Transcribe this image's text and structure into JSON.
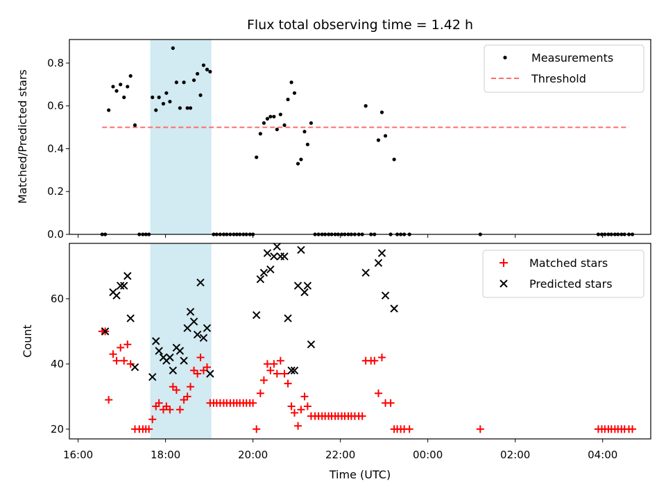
{
  "chart_data": {
    "type": "scatter",
    "title": "Flux total observing time = 1.42 h",
    "xlabel": "Time (UTC)",
    "x_unit": "hours since 16:00 UTC",
    "xlim": [
      -0.2,
      13.1
    ],
    "x_ticks": [
      {
        "x": 0,
        "label": "16:00"
      },
      {
        "x": 2,
        "label": "18:00"
      },
      {
        "x": 4,
        "label": "20:00"
      },
      {
        "x": 6,
        "label": "22:00"
      },
      {
        "x": 8,
        "label": "00:00"
      },
      {
        "x": 10,
        "label": "02:00"
      },
      {
        "x": 12,
        "label": "04:00"
      }
    ],
    "shaded_span": {
      "x0": 1.65,
      "x1": 3.05,
      "color": "#add8e6"
    },
    "top": {
      "ylabel": "Matched/Predicted stars",
      "ylim": [
        0,
        0.91
      ],
      "y_ticks": [
        "0.0",
        "0.2",
        "0.4",
        "0.6",
        "0.8"
      ],
      "legend": {
        "position": "top-right",
        "items": [
          "Measurements",
          "Threshold"
        ]
      },
      "threshold": {
        "name": "Threshold",
        "value": 0.5,
        "x_range": [
          0.55,
          12.6
        ],
        "color": "#ff6b6b"
      },
      "measurements": {
        "name": "Measurements",
        "color": "#000000",
        "points": [
          [
            0.55,
            0
          ],
          [
            0.62,
            0
          ],
          [
            0.7,
            0.58
          ],
          [
            0.8,
            0.69
          ],
          [
            0.88,
            0.67
          ],
          [
            0.97,
            0.7
          ],
          [
            1.05,
            0.64
          ],
          [
            1.13,
            0.69
          ],
          [
            1.2,
            0.74
          ],
          [
            1.3,
            0.51
          ],
          [
            1.4,
            0
          ],
          [
            1.48,
            0
          ],
          [
            1.55,
            0
          ],
          [
            1.62,
            0
          ],
          [
            1.7,
            0.64
          ],
          [
            1.78,
            0.58
          ],
          [
            1.85,
            0.64
          ],
          [
            1.95,
            0.61
          ],
          [
            2.02,
            0.66
          ],
          [
            2.1,
            0.62
          ],
          [
            2.17,
            0.87
          ],
          [
            2.25,
            0.71
          ],
          [
            2.33,
            0.59
          ],
          [
            2.42,
            0.71
          ],
          [
            2.5,
            0.59
          ],
          [
            2.57,
            0.59
          ],
          [
            2.65,
            0.72
          ],
          [
            2.73,
            0.75
          ],
          [
            2.8,
            0.65
          ],
          [
            2.87,
            0.79
          ],
          [
            2.95,
            0.77
          ],
          [
            3.02,
            0.76
          ],
          [
            3.1,
            0
          ],
          [
            3.17,
            0
          ],
          [
            3.25,
            0
          ],
          [
            3.33,
            0
          ],
          [
            3.4,
            0
          ],
          [
            3.48,
            0
          ],
          [
            3.56,
            0
          ],
          [
            3.63,
            0
          ],
          [
            3.7,
            0
          ],
          [
            3.78,
            0
          ],
          [
            3.85,
            0
          ],
          [
            3.93,
            0
          ],
          [
            4.0,
            0
          ],
          [
            4.08,
            0.36
          ],
          [
            4.17,
            0.47
          ],
          [
            4.25,
            0.52
          ],
          [
            4.33,
            0.54
          ],
          [
            4.4,
            0.55
          ],
          [
            4.48,
            0.55
          ],
          [
            4.55,
            0.49
          ],
          [
            4.63,
            0.56
          ],
          [
            4.72,
            0.51
          ],
          [
            4.8,
            0.63
          ],
          [
            4.88,
            0.71
          ],
          [
            4.95,
            0.66
          ],
          [
            5.03,
            0.33
          ],
          [
            5.1,
            0.35
          ],
          [
            5.18,
            0.48
          ],
          [
            5.25,
            0.42
          ],
          [
            5.33,
            0.52
          ],
          [
            5.42,
            0
          ],
          [
            5.5,
            0
          ],
          [
            5.58,
            0
          ],
          [
            5.65,
            0
          ],
          [
            5.73,
            0
          ],
          [
            5.8,
            0
          ],
          [
            5.88,
            0
          ],
          [
            5.95,
            0
          ],
          [
            6.03,
            0
          ],
          [
            6.1,
            0
          ],
          [
            6.18,
            0
          ],
          [
            6.25,
            0
          ],
          [
            6.33,
            0
          ],
          [
            6.42,
            0
          ],
          [
            6.5,
            0
          ],
          [
            6.58,
            0.6
          ],
          [
            6.7,
            0
          ],
          [
            6.78,
            0
          ],
          [
            6.87,
            0.44
          ],
          [
            6.95,
            0.57
          ],
          [
            7.03,
            0.46
          ],
          [
            7.15,
            0
          ],
          [
            7.23,
            0.35
          ],
          [
            7.3,
            0
          ],
          [
            7.38,
            0
          ],
          [
            7.46,
            0
          ],
          [
            7.58,
            0
          ],
          [
            9.2,
            0
          ],
          [
            11.9,
            0
          ],
          [
            11.98,
            0
          ],
          [
            12.05,
            0
          ],
          [
            12.13,
            0
          ],
          [
            12.2,
            0
          ],
          [
            12.28,
            0
          ],
          [
            12.35,
            0
          ],
          [
            12.43,
            0
          ],
          [
            12.5,
            0
          ],
          [
            12.6,
            0
          ],
          [
            12.68,
            0
          ]
        ]
      }
    },
    "bottom": {
      "ylabel": "Count",
      "ylim": [
        17,
        77
      ],
      "y_ticks": [
        "20",
        "40",
        "60"
      ],
      "legend": {
        "position": "top-right",
        "items": [
          "Matched stars",
          "Predicted stars"
        ]
      },
      "matched": {
        "name": "Matched stars",
        "color": "#ff0000",
        "marker": "plus",
        "points": [
          [
            0.55,
            50
          ],
          [
            0.62,
            50
          ],
          [
            0.7,
            29
          ],
          [
            0.8,
            43
          ],
          [
            0.88,
            41
          ],
          [
            0.97,
            45
          ],
          [
            1.05,
            41
          ],
          [
            1.13,
            46
          ],
          [
            1.2,
            40
          ],
          [
            1.3,
            20
          ],
          [
            1.4,
            20
          ],
          [
            1.48,
            20
          ],
          [
            1.55,
            20
          ],
          [
            1.62,
            20
          ],
          [
            1.7,
            23
          ],
          [
            1.78,
            27
          ],
          [
            1.85,
            28
          ],
          [
            1.95,
            26
          ],
          [
            2.02,
            27
          ],
          [
            2.1,
            26
          ],
          [
            2.17,
            33
          ],
          [
            2.25,
            32
          ],
          [
            2.33,
            26
          ],
          [
            2.42,
            29
          ],
          [
            2.5,
            30
          ],
          [
            2.57,
            33
          ],
          [
            2.65,
            38
          ],
          [
            2.73,
            37
          ],
          [
            2.8,
            42
          ],
          [
            2.87,
            38
          ],
          [
            2.95,
            39
          ],
          [
            3.02,
            28
          ],
          [
            3.1,
            28
          ],
          [
            3.17,
            28
          ],
          [
            3.25,
            28
          ],
          [
            3.33,
            28
          ],
          [
            3.4,
            28
          ],
          [
            3.48,
            28
          ],
          [
            3.56,
            28
          ],
          [
            3.63,
            28
          ],
          [
            3.7,
            28
          ],
          [
            3.78,
            28
          ],
          [
            3.85,
            28
          ],
          [
            3.93,
            28
          ],
          [
            4.0,
            28
          ],
          [
            4.08,
            20
          ],
          [
            4.17,
            31
          ],
          [
            4.25,
            35
          ],
          [
            4.33,
            40
          ],
          [
            4.4,
            38
          ],
          [
            4.48,
            40
          ],
          [
            4.55,
            37
          ],
          [
            4.63,
            41
          ],
          [
            4.72,
            37
          ],
          [
            4.8,
            34
          ],
          [
            4.88,
            27
          ],
          [
            4.95,
            25
          ],
          [
            5.03,
            21
          ],
          [
            5.1,
            26
          ],
          [
            5.18,
            30
          ],
          [
            5.25,
            27
          ],
          [
            5.33,
            24
          ],
          [
            5.42,
            24
          ],
          [
            5.5,
            24
          ],
          [
            5.58,
            24
          ],
          [
            5.65,
            24
          ],
          [
            5.73,
            24
          ],
          [
            5.8,
            24
          ],
          [
            5.88,
            24
          ],
          [
            5.95,
            24
          ],
          [
            6.03,
            24
          ],
          [
            6.1,
            24
          ],
          [
            6.18,
            24
          ],
          [
            6.25,
            24
          ],
          [
            6.33,
            24
          ],
          [
            6.42,
            24
          ],
          [
            6.5,
            24
          ],
          [
            6.58,
            41
          ],
          [
            6.7,
            41
          ],
          [
            6.78,
            41
          ],
          [
            6.87,
            31
          ],
          [
            6.95,
            42
          ],
          [
            7.03,
            28
          ],
          [
            7.15,
            28
          ],
          [
            7.23,
            20
          ],
          [
            7.3,
            20
          ],
          [
            7.38,
            20
          ],
          [
            7.46,
            20
          ],
          [
            7.58,
            20
          ],
          [
            9.2,
            20
          ],
          [
            11.9,
            20
          ],
          [
            11.98,
            20
          ],
          [
            12.05,
            20
          ],
          [
            12.13,
            20
          ],
          [
            12.2,
            20
          ],
          [
            12.28,
            20
          ],
          [
            12.35,
            20
          ],
          [
            12.43,
            20
          ],
          [
            12.5,
            20
          ],
          [
            12.6,
            20
          ],
          [
            12.68,
            20
          ]
        ]
      },
      "predicted": {
        "name": "Predicted stars",
        "color": "#000000",
        "marker": "x",
        "points": [
          [
            0.62,
            50
          ],
          [
            0.8,
            62
          ],
          [
            0.88,
            61
          ],
          [
            0.97,
            64
          ],
          [
            1.05,
            64
          ],
          [
            1.13,
            67
          ],
          [
            1.2,
            54
          ],
          [
            1.3,
            39
          ],
          [
            1.7,
            36
          ],
          [
            1.78,
            47
          ],
          [
            1.85,
            44
          ],
          [
            1.95,
            42
          ],
          [
            2.02,
            41
          ],
          [
            2.1,
            42
          ],
          [
            2.17,
            38
          ],
          [
            2.25,
            45
          ],
          [
            2.33,
            44
          ],
          [
            2.42,
            41
          ],
          [
            2.5,
            51
          ],
          [
            2.57,
            56
          ],
          [
            2.65,
            53
          ],
          [
            2.73,
            49
          ],
          [
            2.8,
            65
          ],
          [
            2.87,
            48
          ],
          [
            2.95,
            51
          ],
          [
            3.02,
            37
          ],
          [
            4.08,
            55
          ],
          [
            4.17,
            66
          ],
          [
            4.25,
            68
          ],
          [
            4.33,
            74
          ],
          [
            4.4,
            69
          ],
          [
            4.48,
            73
          ],
          [
            4.55,
            76
          ],
          [
            4.63,
            73
          ],
          [
            4.72,
            73
          ],
          [
            4.8,
            54
          ],
          [
            4.88,
            38
          ],
          [
            4.95,
            38
          ],
          [
            5.03,
            64
          ],
          [
            5.1,
            75
          ],
          [
            5.18,
            62
          ],
          [
            5.25,
            64
          ],
          [
            5.33,
            46
          ],
          [
            6.58,
            68
          ],
          [
            6.87,
            71
          ],
          [
            6.95,
            74
          ],
          [
            7.03,
            61
          ],
          [
            7.23,
            57
          ]
        ]
      }
    }
  }
}
